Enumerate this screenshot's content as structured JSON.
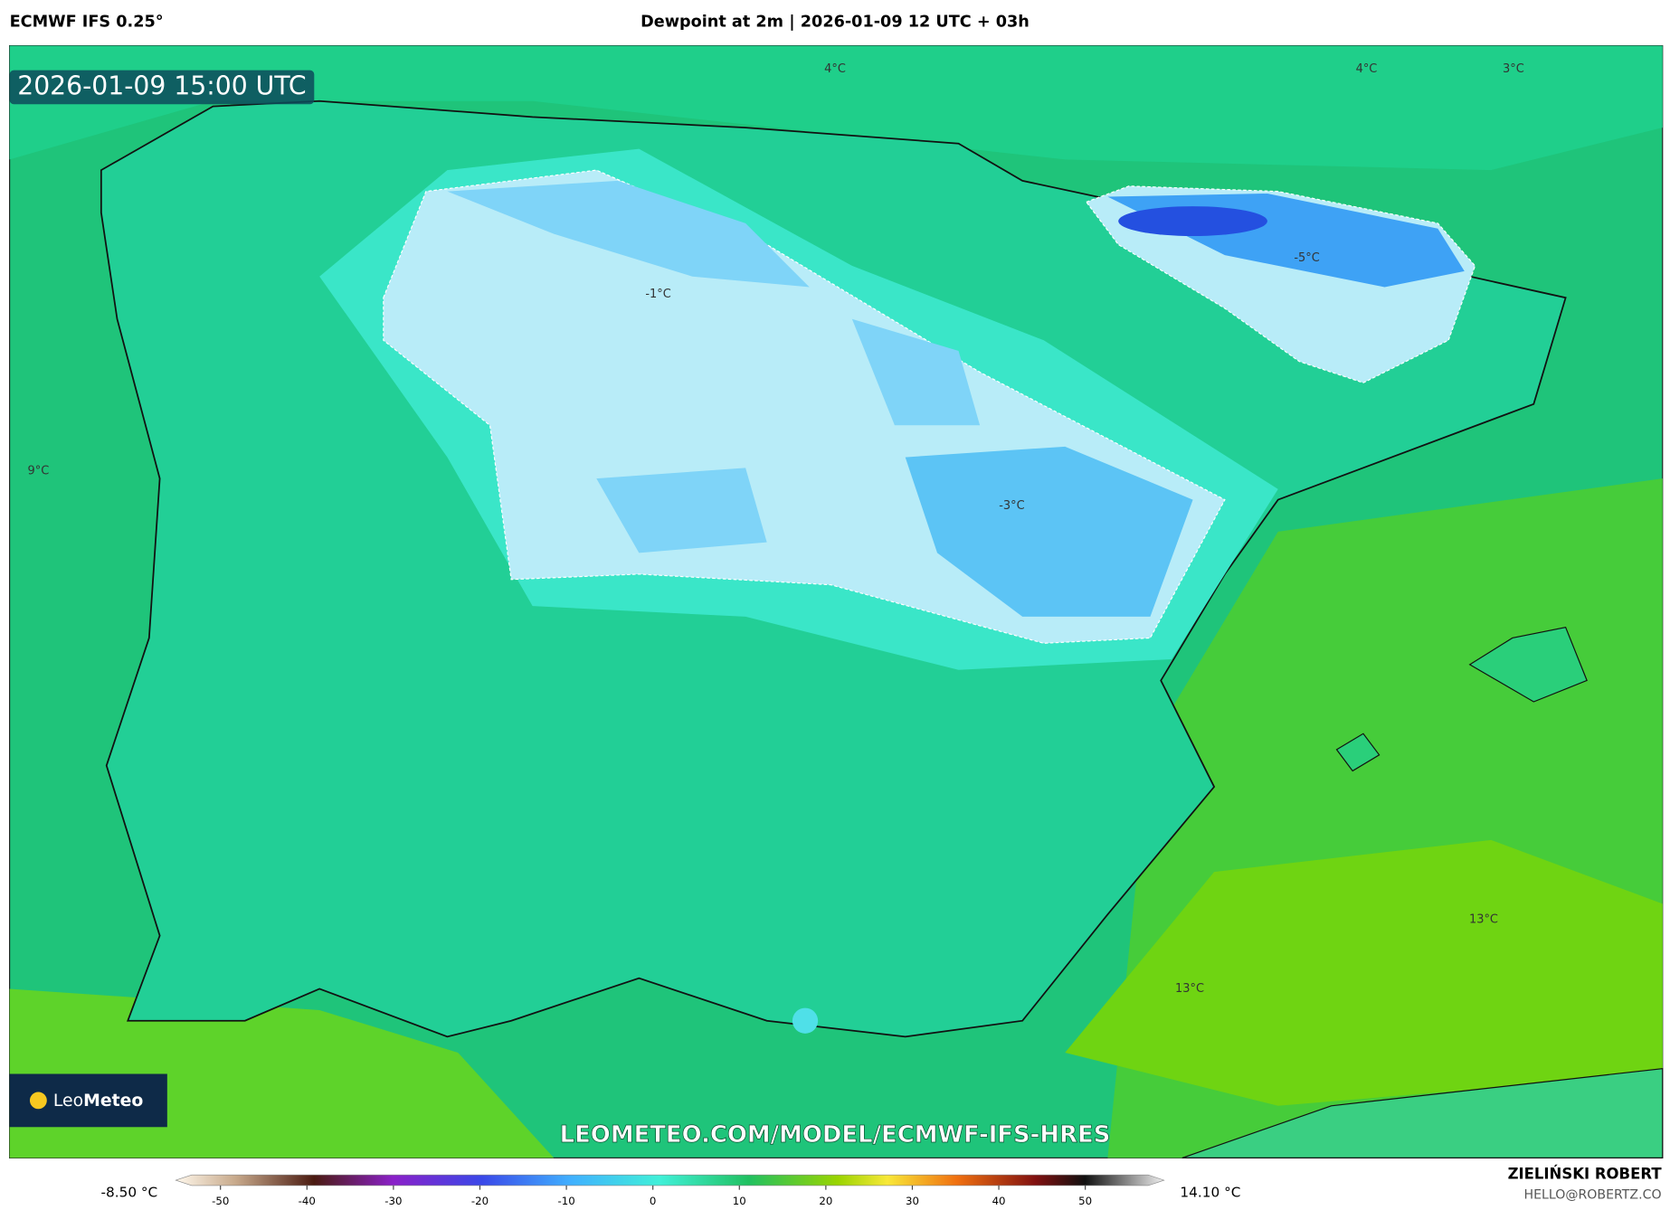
{
  "header": {
    "model": "ECMWF IFS 0.25°",
    "title": "Dewpoint at 2m | 2026-01-09 12 UTC + 03h"
  },
  "map": {
    "valid_time": "2026-01-09 15:00 UTC",
    "contour_labels": [
      "4°C",
      "4°C",
      "3°C",
      "-1°C",
      "-5°C",
      "9°C",
      "-3°C",
      "13°C",
      "13°C"
    ],
    "logo": {
      "light": "Leo",
      "bold": "Meteo"
    },
    "watermark": "LEOMETEO.COM/MODEL/ECMWF-IFS-HRES"
  },
  "colorbar": {
    "min_label": "-8.50 °C",
    "max_label": "14.10 °C",
    "ticks": [
      -50,
      -40,
      -30,
      -20,
      -10,
      0,
      10,
      20,
      30,
      40,
      50
    ]
  },
  "footer": {
    "author": "ZIELIŃSKI ROBERT",
    "email": "HELLO@ROBERTZ.CO"
  }
}
